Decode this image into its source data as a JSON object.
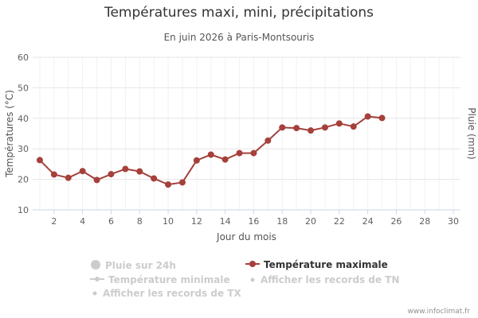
{
  "chart_data": {
    "type": "line",
    "title": "Températures maxi, mini, précipitations",
    "subtitle": "En juin 2026 à Paris-Montsouris",
    "xlabel": "Jour du mois",
    "ylabel": "Températures (°C)",
    "y2label": "Pluie (mm)",
    "xlim": [
      0.5,
      30.5
    ],
    "ylim": [
      10,
      60
    ],
    "x_ticks": [
      2,
      4,
      6,
      8,
      10,
      12,
      14,
      16,
      18,
      20,
      22,
      24,
      26,
      28,
      30
    ],
    "y_ticks": [
      10,
      20,
      30,
      40,
      50,
      60
    ],
    "grid": true,
    "legend_position": "bottom",
    "series": [
      {
        "name": "Température maximale",
        "color": "#a5403b",
        "x": [
          1,
          2,
          3,
          4,
          5,
          6,
          7,
          8,
          9,
          10,
          11,
          12,
          13,
          14,
          15,
          16,
          17,
          18,
          19,
          20,
          21,
          22,
          23,
          24,
          25
        ],
        "values": [
          26.3,
          21.6,
          20.5,
          22.7,
          19.8,
          21.7,
          23.4,
          22.6,
          20.3,
          18.3,
          19.0,
          26.2,
          28.1,
          26.5,
          28.6,
          28.6,
          32.7,
          37.0,
          36.8,
          36.0,
          37.0,
          38.3,
          37.3,
          40.6,
          40.1
        ]
      }
    ],
    "legend_items": [
      {
        "label": "Pluie sur 24h",
        "symbol": "circle",
        "active": false
      },
      {
        "label": "Température maximale",
        "symbol": "line-marker",
        "active": true
      },
      {
        "label": "Température minimale",
        "symbol": "line-marker",
        "active": false
      },
      {
        "label": "Afficher les records de TN",
        "symbol": "dot",
        "active": false
      },
      {
        "label": "Afficher les records de TX",
        "symbol": "dot",
        "active": false
      }
    ]
  },
  "credit": "www.infoclimat.fr"
}
